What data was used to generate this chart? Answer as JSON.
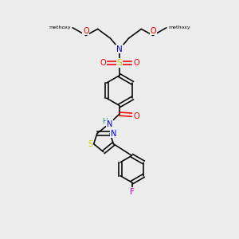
{
  "bg": "#ececec",
  "C": "#000000",
  "N": "#0000dd",
  "O": "#ee0000",
  "S": "#cccc00",
  "F": "#cc00cc",
  "H": "#008888",
  "lw": 1.15,
  "fs": 7.0
}
